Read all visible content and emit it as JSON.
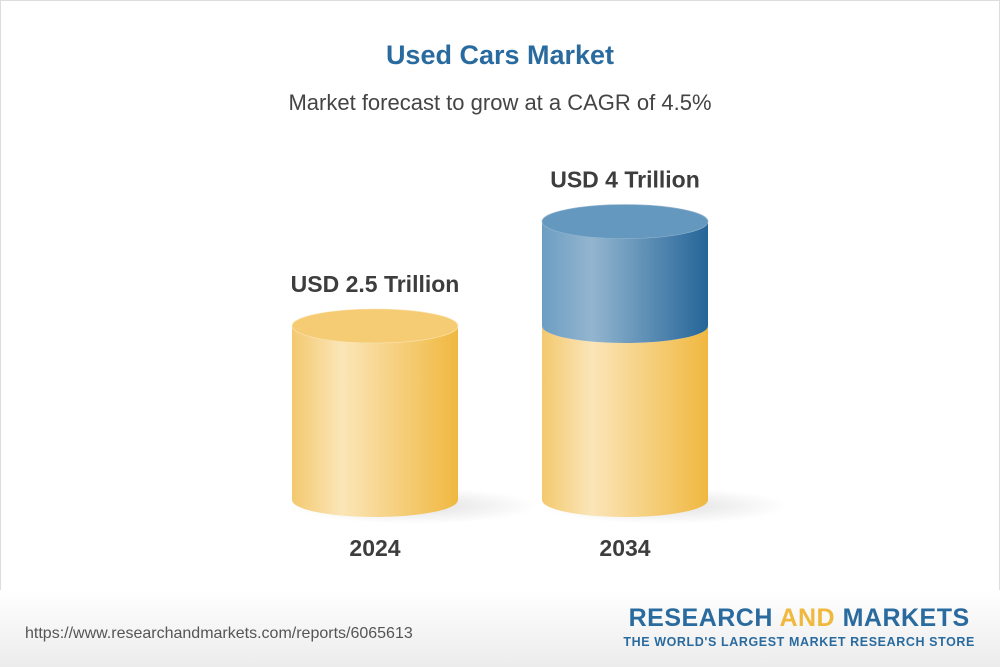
{
  "title": "Used Cars Market",
  "subtitle": "Market forecast to grow at a CAGR of 4.5%",
  "chart_data": {
    "type": "bar",
    "style": "3d-cylinder",
    "categories": [
      "2024",
      "2034"
    ],
    "values": [
      2.5,
      4
    ],
    "unit": "USD Trillion",
    "data_labels": [
      "USD 2.5 Trillion",
      "USD 4 Trillion"
    ],
    "colors": {
      "base": "#f2c14e",
      "growth": "#2a6b9f"
    }
  },
  "footer": {
    "url": "https://www.researchandmarkets.com/reports/6065613",
    "logo_part1": "RESEARCH ",
    "logo_part2": "AND",
    "logo_part3": " MARKETS",
    "logo_tagline": "THE WORLD'S LARGEST MARKET RESEARCH STORE"
  }
}
